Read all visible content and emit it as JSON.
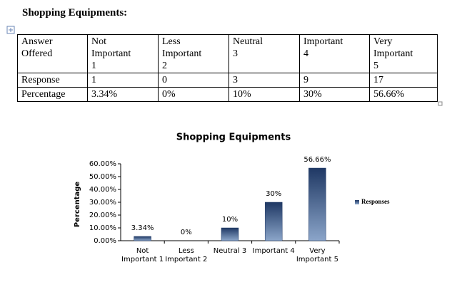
{
  "header": {
    "title": "Shopping Equipments:"
  },
  "table": {
    "rows": [
      [
        "Answer\nOffered",
        "Not\nImportant\n1",
        "Less\nImportant\n2",
        "Neutral\n3",
        "Important\n4",
        "Very\nImportant\n5"
      ],
      [
        "Response",
        "1",
        "0",
        "3",
        "9",
        "17"
      ],
      [
        "Percentage",
        "3.34%",
        "0%",
        "10%",
        "30%",
        "56.66%"
      ]
    ]
  },
  "chart_data": {
    "type": "bar",
    "title": "Shopping Equipments",
    "y_label": "Percentage",
    "categories": [
      "Not\nImportant 1",
      "Less\nImportant 2",
      "Neutral 3",
      "Important 4",
      "Very\nImportant 5"
    ],
    "series": [
      {
        "name": "Responses",
        "color": "#1f3864",
        "values": [
          3.34,
          0,
          10,
          30,
          56.66
        ],
        "value_labels": [
          "3.34%",
          "0%",
          "10%",
          "30%",
          "56.66%"
        ]
      }
    ],
    "ylim": [
      0,
      60
    ],
    "yticks": [
      {
        "value": 0,
        "label": "0.00%"
      },
      {
        "value": 10,
        "label": "10.00%"
      },
      {
        "value": 20,
        "label": "20.00%"
      },
      {
        "value": 30,
        "label": "30.00%"
      },
      {
        "value": 40,
        "label": "40.00%"
      },
      {
        "value": 50,
        "label": "50.00%"
      },
      {
        "value": 60,
        "label": "60.00%"
      }
    ],
    "legend": "right"
  }
}
